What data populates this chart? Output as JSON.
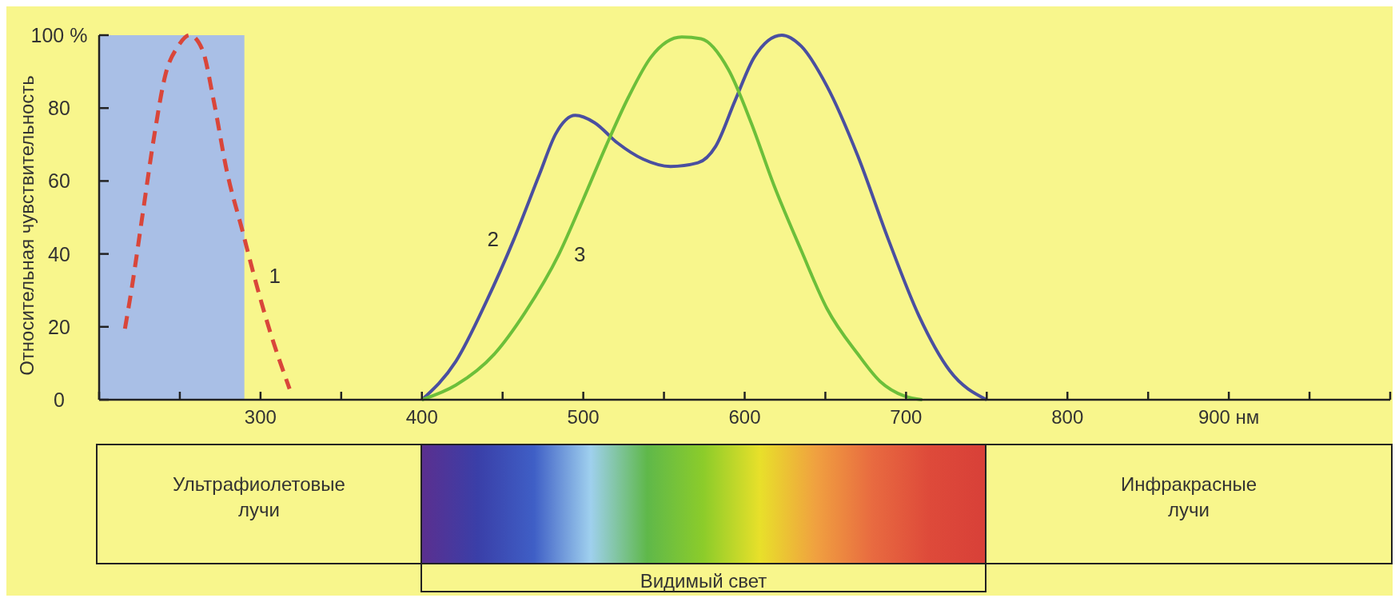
{
  "chart_data": {
    "type": "line",
    "ylabel": "Относительная чувствительность",
    "xlim": [
      200,
      1000
    ],
    "ylim": [
      0,
      100
    ],
    "xticks": [
      {
        "value": 200,
        "label": null
      },
      {
        "value": 250,
        "label": null
      },
      300,
      {
        "value": 350,
        "label": null
      },
      400,
      {
        "value": 450,
        "label": null
      },
      500,
      {
        "value": 550,
        "label": null
      },
      600,
      {
        "value": 650,
        "label": null
      },
      700,
      {
        "value": 750,
        "label": null
      },
      800,
      {
        "value": 850,
        "label": null
      },
      {
        "value": 900,
        "label": "900 нм"
      },
      {
        "value": 950,
        "label": null
      },
      {
        "value": 1000,
        "label": null
      }
    ],
    "yticks": [
      0,
      20,
      40,
      60,
      80,
      {
        "value": 100,
        "label": "100 %"
      }
    ],
    "bands": [
      {
        "axis": "x",
        "from": 200,
        "to": 290,
        "color": "#a9bfe6"
      }
    ],
    "series": [
      {
        "color": "#d9463a",
        "line_style": "dashed",
        "x": [
          216,
          220,
          227,
          234,
          241,
          249,
          256,
          264,
          271,
          279,
          289,
          296,
          305,
          318
        ],
        "values": [
          19.5,
          30,
          51,
          72,
          89,
          97,
          100,
          96,
          82,
          63,
          46,
          34,
          20,
          3
        ]
      },
      {
        "color": "#4a4fa0",
        "line_style": "solid",
        "x": [
          400,
          421,
          440,
          457,
          473,
          483,
          495,
          507,
          521,
          537,
          554,
          571,
          582,
          594,
          606,
          623,
          635,
          651,
          670,
          689,
          708,
          727,
          750
        ],
        "values": [
          0,
          10.5,
          27,
          44,
          62,
          73,
          78,
          76,
          70.5,
          66,
          64,
          65,
          69.5,
          82,
          94,
          100,
          97,
          86,
          67,
          44,
          23,
          8,
          0
        ]
      },
      {
        "color": "#6cbf3a",
        "line_style": "solid",
        "x": [
          400,
          421,
          445,
          464,
          485,
          500,
          514,
          528,
          542,
          561,
          573,
          590,
          604,
          618,
          635,
          651,
          670,
          684,
          699,
          710
        ],
        "values": [
          0,
          4,
          12.6,
          24,
          40,
          55,
          69.5,
          83,
          94,
          99.5,
          99,
          90.5,
          76,
          59,
          41,
          25,
          12.6,
          5,
          1,
          0
        ]
      }
    ],
    "annotations": [
      {
        "text": "1",
        "x": 296,
        "y": 34
      },
      {
        "text": "2",
        "x": 457,
        "y": 44
      },
      {
        "text": "3",
        "x": 485,
        "y": 40
      },
      "Ультрафиолетовые лучи",
      "Инфракрасные лучи",
      "Видимый свет"
    ]
  }
}
